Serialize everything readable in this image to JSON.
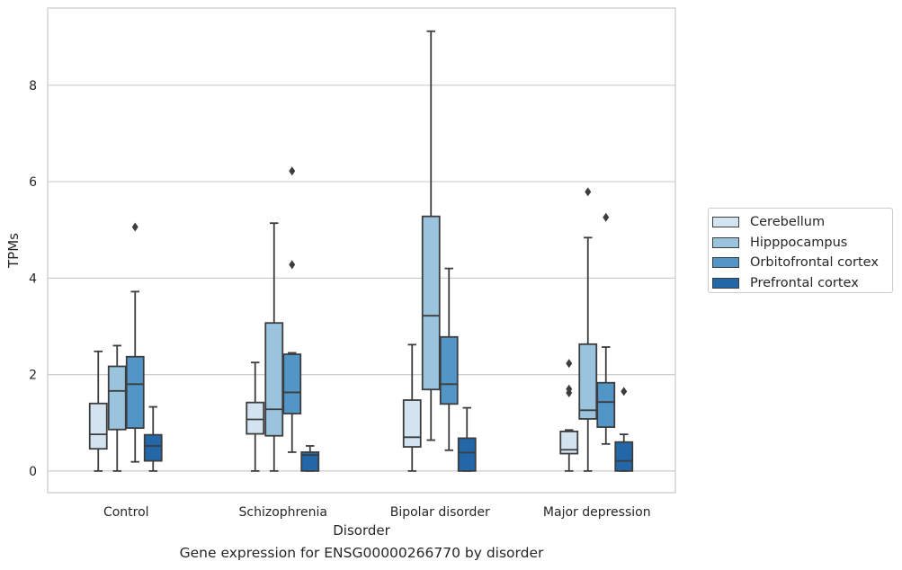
{
  "caption": "Gene expression for ENSG00000266770 by disorder",
  "legend": {
    "items": [
      {
        "label": "Cerebellum",
        "color": "#d3e3f0"
      },
      {
        "label": "Hipppocampus",
        "color": "#9ac4de"
      },
      {
        "label": "Orbitofrontal cortex",
        "color": "#5296c8"
      },
      {
        "label": "Prefrontal cortex",
        "color": "#2367a8"
      }
    ]
  },
  "chart_data": {
    "type": "box",
    "title": "",
    "xlabel": "Disorder",
    "ylabel": "TPMs",
    "ylim": [
      -0.45,
      9.6
    ],
    "yticks": [
      0,
      2,
      4,
      6,
      8
    ],
    "grid": "horizontal",
    "legend_position": "right",
    "categories": [
      "Control",
      "Schizophrenia",
      "Bipolar disorder",
      "Major depression"
    ],
    "series": [
      {
        "name": "Cerebellum",
        "color": "#d3e3f0",
        "boxes": [
          {
            "whisker_low": 0.0,
            "q1": 0.46,
            "median": 0.76,
            "q3": 1.4,
            "whisker_high": 2.48,
            "outliers": []
          },
          {
            "whisker_low": 0.0,
            "q1": 0.77,
            "median": 1.07,
            "q3": 1.42,
            "whisker_high": 2.25,
            "outliers": []
          },
          {
            "whisker_low": 0.0,
            "q1": 0.5,
            "median": 0.7,
            "q3": 1.47,
            "whisker_high": 2.62,
            "outliers": []
          },
          {
            "whisker_low": 0.0,
            "q1": 0.36,
            "median": 0.44,
            "q3": 0.82,
            "whisker_high": 0.85,
            "outliers": [
              2.23,
              1.7,
              1.62
            ]
          }
        ]
      },
      {
        "name": "Hipppocampus",
        "color": "#9ac4de",
        "boxes": [
          {
            "whisker_low": 0.0,
            "q1": 0.86,
            "median": 1.66,
            "q3": 2.17,
            "whisker_high": 2.6,
            "outliers": []
          },
          {
            "whisker_low": 0.0,
            "q1": 0.73,
            "median": 1.28,
            "q3": 3.07,
            "whisker_high": 5.14,
            "outliers": []
          },
          {
            "whisker_low": 0.64,
            "q1": 1.69,
            "median": 3.22,
            "q3": 5.28,
            "whisker_high": 9.12,
            "outliers": []
          },
          {
            "whisker_low": 0.0,
            "q1": 1.08,
            "median": 1.26,
            "q3": 2.63,
            "whisker_high": 4.84,
            "outliers": [
              5.79
            ]
          }
        ]
      },
      {
        "name": "Orbitofrontal cortex",
        "color": "#5296c8",
        "boxes": [
          {
            "whisker_low": 0.19,
            "q1": 0.89,
            "median": 1.8,
            "q3": 2.37,
            "whisker_high": 3.72,
            "outliers": [
              5.06
            ]
          },
          {
            "whisker_low": 0.39,
            "q1": 1.19,
            "median": 1.63,
            "q3": 2.42,
            "whisker_high": 2.45,
            "outliers": [
              6.22,
              4.28
            ]
          },
          {
            "whisker_low": 0.43,
            "q1": 1.39,
            "median": 1.8,
            "q3": 2.78,
            "whisker_high": 4.2,
            "outliers": []
          },
          {
            "whisker_low": 0.56,
            "q1": 0.91,
            "median": 1.43,
            "q3": 1.83,
            "whisker_high": 2.57,
            "outliers": [
              5.26
            ]
          }
        ]
      },
      {
        "name": "Prefrontal cortex",
        "color": "#2367a8",
        "boxes": [
          {
            "whisker_low": 0.0,
            "q1": 0.21,
            "median": 0.52,
            "q3": 0.75,
            "whisker_high": 1.33,
            "outliers": []
          },
          {
            "whisker_low": 0.0,
            "q1": 0.0,
            "median": 0.33,
            "q3": 0.39,
            "whisker_high": 0.52,
            "outliers": []
          },
          {
            "whisker_low": 0.0,
            "q1": 0.0,
            "median": 0.38,
            "q3": 0.68,
            "whisker_high": 1.31,
            "outliers": []
          },
          {
            "whisker_low": 0.0,
            "q1": 0.0,
            "median": 0.21,
            "q3": 0.6,
            "whisker_high": 0.76,
            "outliers": [
              1.65
            ]
          }
        ]
      }
    ]
  }
}
